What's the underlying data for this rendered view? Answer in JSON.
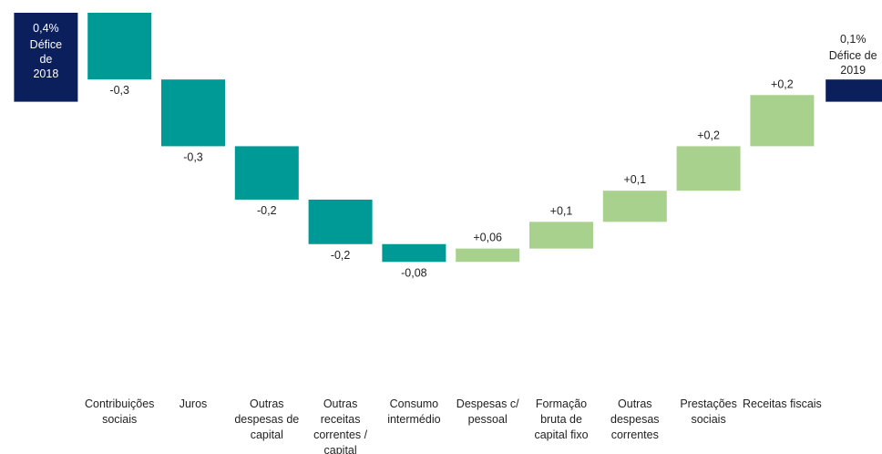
{
  "chart_data": {
    "type": "bar",
    "subtype": "waterfall",
    "title": "",
    "xlabel": "",
    "ylabel": "",
    "ylim": [
      -0.55,
      0.48
    ],
    "categories": [
      [
        "Contribuições",
        "sociais"
      ],
      [
        "Juros"
      ],
      [
        "Outras",
        "despesas de",
        "capital"
      ],
      [
        "Outras",
        "receitas",
        "correntes /",
        "capital"
      ],
      [
        "Consumo",
        "intermédio"
      ],
      [
        "Despesas c/",
        "pessoal"
      ],
      [
        "Formação",
        "bruta de",
        "capital fixo"
      ],
      [
        "Outras",
        "despesas",
        "correntes"
      ],
      [
        "Prestações",
        "sociais"
      ],
      [
        "Receitas fiscais"
      ]
    ],
    "start": {
      "value": 0.4,
      "value_label": "0,4%",
      "label_lines": [
        "Défice",
        "de",
        "2018"
      ]
    },
    "end": {
      "value": 0.1,
      "value_label": "0,1%",
      "label_lines": [
        "Défice de",
        "2019"
      ]
    },
    "steps": [
      {
        "value": -0.3,
        "label": "-0,3"
      },
      {
        "value": -0.3,
        "label": "-0,3"
      },
      {
        "value": -0.24,
        "label": "-0,2"
      },
      {
        "value": -0.2,
        "label": "-0,2"
      },
      {
        "value": -0.08,
        "label": "-0,08"
      },
      {
        "value": 0.06,
        "label": "+0,06"
      },
      {
        "value": 0.12,
        "label": "+0,1"
      },
      {
        "value": 0.14,
        "label": "+0,1"
      },
      {
        "value": 0.2,
        "label": "+0,2"
      },
      {
        "value": 0.23,
        "label": "+0,2"
      }
    ],
    "colors": {
      "total": "#0b1f5c",
      "decrease": "#009a96",
      "increase": "#a9d18e"
    },
    "grid": false,
    "legend": "none"
  }
}
